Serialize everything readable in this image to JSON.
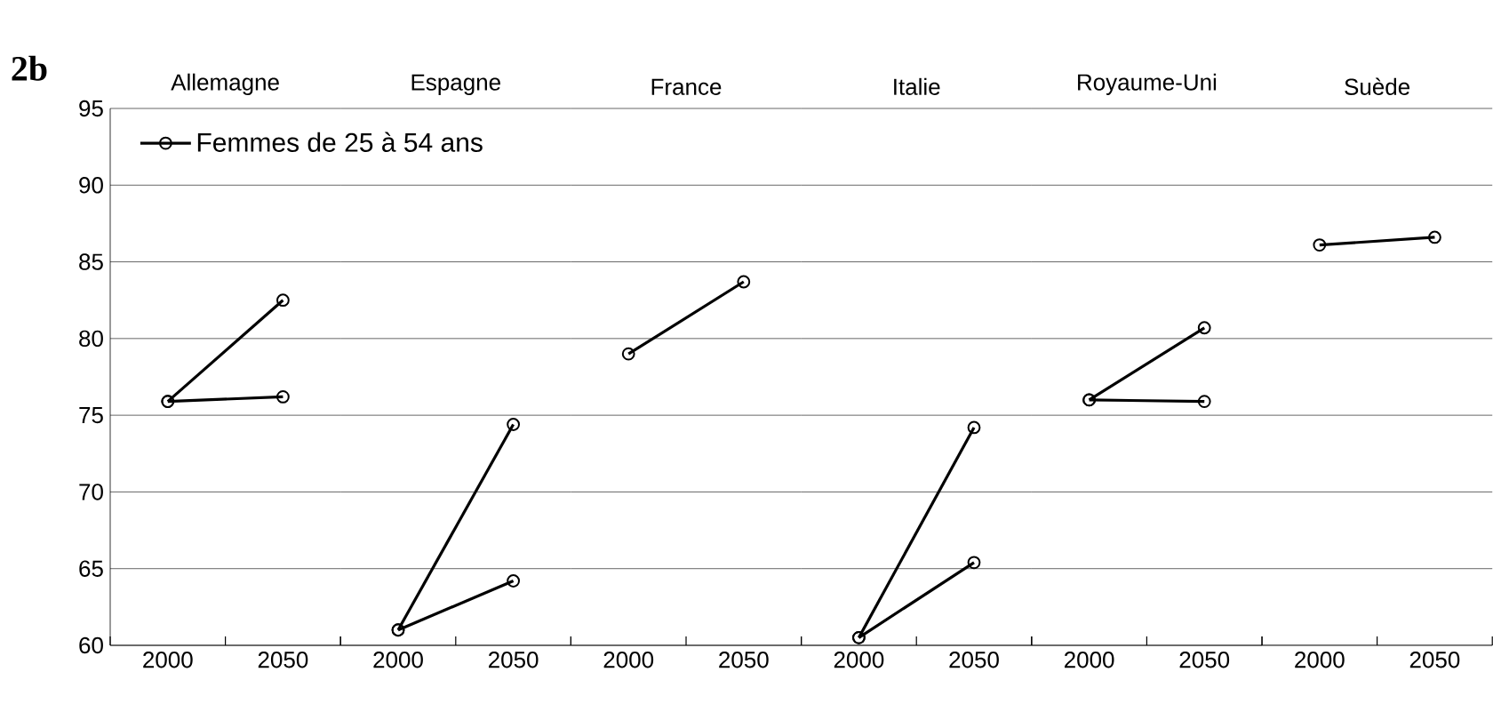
{
  "chart_data": [
    {
      "type": "line",
      "title": "Allemagne",
      "annotations": [
        "2b"
      ],
      "categories": [
        "2000",
        "2050"
      ],
      "ylim": [
        60,
        95
      ],
      "yticks": [
        60,
        65,
        70,
        75,
        80,
        85,
        90,
        95
      ],
      "grid": "y",
      "marker": "circle",
      "legend": "top right",
      "series": [
        {
          "name": "Femmes de 25 à 54 ans",
          "color": "#000000",
          "values": [
            75.9,
            82.5
          ]
        },
        {
          "color": "#000000",
          "values": [
            75.9,
            76.2
          ]
        }
      ]
    },
    {
      "type": "line",
      "title": "Espagne",
      "categories": [
        "2000",
        "2050"
      ],
      "ylim": [
        60,
        95
      ],
      "yticks": [
        60,
        65,
        70,
        75,
        80,
        85,
        90,
        95
      ],
      "grid": "y",
      "marker": "circle",
      "tick_labels": "x",
      "series": [
        {
          "color": "#000000",
          "values": [
            61.0,
            74.4
          ]
        },
        {
          "color": "#000000",
          "values": [
            61.0,
            64.2
          ]
        }
      ]
    },
    {
      "type": "line",
      "title": "France",
      "categories": [
        "2000",
        "2050"
      ],
      "ylim": [
        60,
        95
      ],
      "yticks": [
        60,
        65,
        70,
        75,
        80,
        85,
        90,
        95
      ],
      "grid": "y",
      "marker": "circle",
      "tick_labels": "x",
      "series": [
        {
          "color": "#000000",
          "values": [
            79.0,
            83.7
          ]
        }
      ]
    },
    {
      "type": "line",
      "title": "Italie",
      "categories": [
        "2000",
        "2050"
      ],
      "ylim": [
        60,
        95
      ],
      "yticks": [
        60,
        65,
        70,
        75,
        80,
        85,
        90,
        95
      ],
      "grid": "y",
      "marker": "circle",
      "tick_labels": "x",
      "series": [
        {
          "color": "#000000",
          "values": [
            60.5,
            74.2
          ]
        },
        {
          "color": "#000000",
          "values": [
            60.5,
            65.4
          ]
        }
      ]
    },
    {
      "type": "line",
      "title": "Royaume-Uni",
      "categories": [
        "2000",
        "2050"
      ],
      "ylim": [
        60,
        95
      ],
      "yticks": [
        60,
        65,
        70,
        75,
        80,
        85,
        90,
        95
      ],
      "grid": "y",
      "marker": "circle",
      "tick_labels": "x",
      "series": [
        {
          "color": "#000000",
          "values": [
            76.0,
            80.7
          ]
        },
        {
          "color": "#000000",
          "values": [
            76.0,
            75.9
          ]
        }
      ]
    },
    {
      "type": "line",
      "title": "Suède",
      "categories": [
        "2000",
        "2050"
      ],
      "ylim": [
        60,
        95
      ],
      "yticks": [
        60,
        65,
        70,
        75,
        80,
        85,
        90,
        95
      ],
      "grid": "y",
      "marker": "circle",
      "tick_labels": "x",
      "series": [
        {
          "color": "#000000",
          "values": [
            86.1,
            86.6
          ]
        }
      ]
    }
  ]
}
